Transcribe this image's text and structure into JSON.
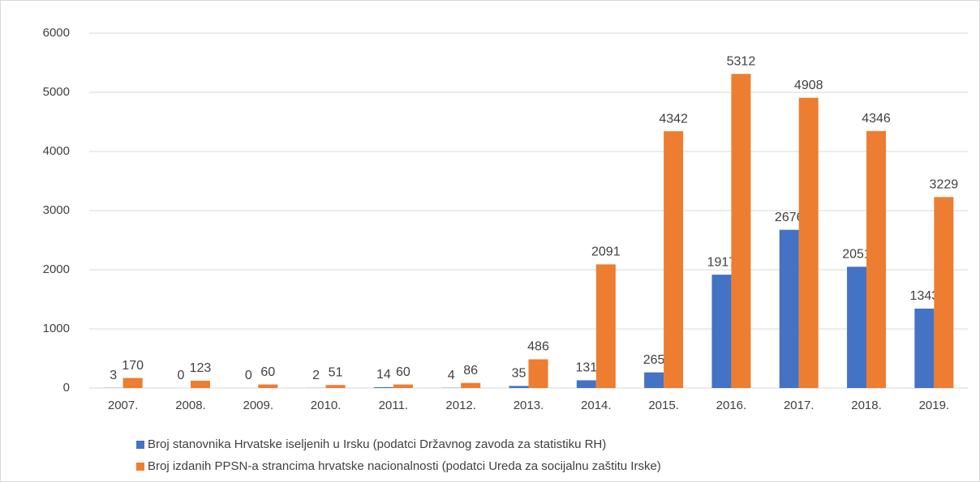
{
  "chart_data": {
    "type": "bar",
    "categories": [
      "2007.",
      "2008.",
      "2009.",
      "2010.",
      "2011.",
      "2012.",
      "2013.",
      "2014.",
      "2015.",
      "2016.",
      "2017.",
      "2018.",
      "2019."
    ],
    "series": [
      {
        "name": "Broj stanovnika Hrvatske iseljenih u Irsku (podatci Državnog zavoda za statistiku RH)",
        "color": "#4472c4",
        "values": [
          3,
          0,
          0,
          2,
          14,
          4,
          35,
          131,
          265,
          1917,
          2676,
          2051,
          1343
        ]
      },
      {
        "name": "Broj izdanih PPSN-a strancima hrvatske nacionalnosti (podatci Ureda za socijalnu zaštitu Irske)",
        "color": "#ed7d31",
        "values": [
          170,
          123,
          60,
          51,
          60,
          86,
          486,
          2091,
          4342,
          5312,
          4908,
          4346,
          3229
        ]
      }
    ],
    "ylim": [
      0,
      6000
    ],
    "yticks": [
      0,
      1000,
      2000,
      3000,
      4000,
      5000,
      6000
    ],
    "grid": true
  }
}
